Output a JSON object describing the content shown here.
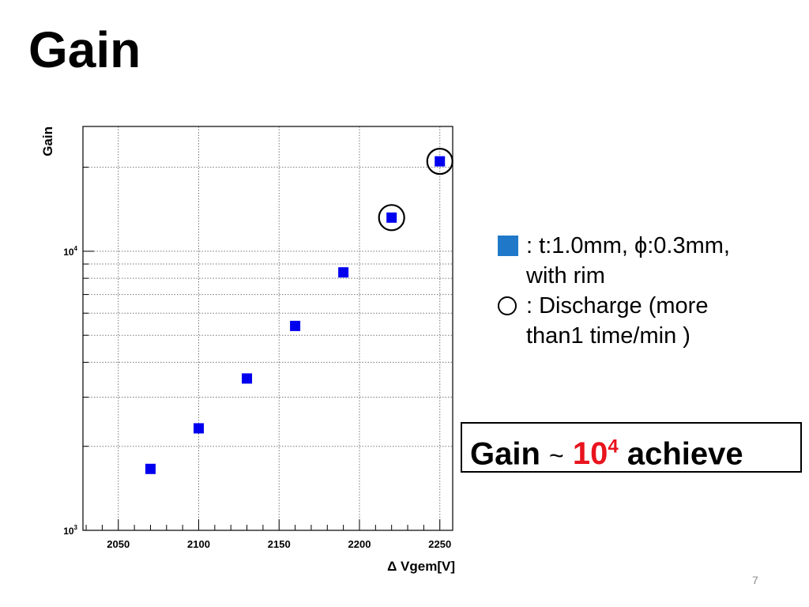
{
  "slide": {
    "title": "Gain",
    "page_number": "7"
  },
  "legend": {
    "item1_marker_color": "#1f78c8",
    "item1_line1": ": t:1.0mm, ϕ:0.3mm,",
    "item1_line2": "with rim",
    "item2_line1": ": Discharge (more",
    "item2_line2": "than1 time/min )"
  },
  "callout": {
    "prefix": "Gain",
    "tilde": "~",
    "highlight_base": "10",
    "highlight_exponent": "4",
    "suffix": "achieve",
    "highlight_color": "#e8141e"
  },
  "chart_data": {
    "type": "scatter",
    "xlabel": "Δ Vgem[V]",
    "ylabel": "Gain",
    "xlim": [
      2028,
      2258
    ],
    "ylim": [
      1000,
      28000
    ],
    "yscale": "log",
    "grid": true,
    "x_ticks": [
      2050,
      2100,
      2150,
      2200,
      2250
    ],
    "y_tick_labels": [
      {
        "value": 1000,
        "base": "10",
        "exp": "3"
      },
      {
        "value": 10000,
        "base": "10",
        "exp": "4"
      }
    ],
    "series": [
      {
        "marker": "square",
        "color": "#0000ee",
        "x": [
          2070,
          2100,
          2130,
          2160,
          2190,
          2220,
          2250
        ],
        "y": [
          1660,
          2320,
          3500,
          5400,
          8400,
          13200,
          21000
        ]
      }
    ],
    "discharge_points_x": [
      2220,
      2250
    ]
  }
}
